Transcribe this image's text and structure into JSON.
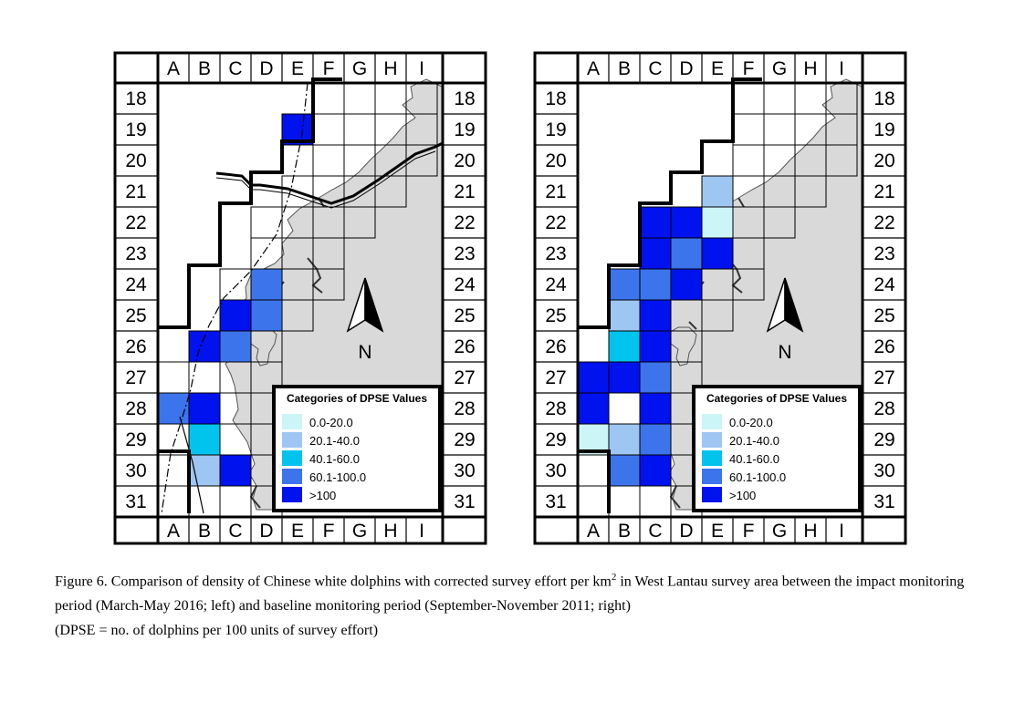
{
  "columns": [
    "A",
    "B",
    "C",
    "D",
    "E",
    "F",
    "G",
    "H",
    "I"
  ],
  "rows": [
    "18",
    "19",
    "20",
    "21",
    "22",
    "23",
    "24",
    "25",
    "26",
    "27",
    "28",
    "29",
    "30",
    "31"
  ],
  "north_label": "N",
  "legend": {
    "title": "Categories of DPSE Values",
    "categories": [
      {
        "label": "0.0-20.0",
        "color": "#ccf5f8"
      },
      {
        "label": "20.1-40.0",
        "color": "#9ec6f2"
      },
      {
        "label": "40.1-60.0",
        "color": "#00c4ee"
      },
      {
        "label": "60.1-100.0",
        "color": "#3c74ec"
      },
      {
        "label": ">100",
        "color": "#0012ee"
      }
    ]
  },
  "colors": {
    "land": "#d9d9d9",
    "grid": "#000000"
  },
  "maps": [
    {
      "name": "left-map",
      "cells": [
        {
          "col": "E",
          "row": "19",
          "category": 4
        },
        {
          "col": "D",
          "row": "24",
          "category": 3
        },
        {
          "col": "C",
          "row": "25",
          "category": 4
        },
        {
          "col": "D",
          "row": "25",
          "category": 3
        },
        {
          "col": "B",
          "row": "26",
          "category": 4
        },
        {
          "col": "C",
          "row": "26",
          "category": 3
        },
        {
          "col": "A",
          "row": "28",
          "category": 3
        },
        {
          "col": "B",
          "row": "28",
          "category": 4
        },
        {
          "col": "B",
          "row": "29",
          "category": 2
        },
        {
          "col": "B",
          "row": "30",
          "category": 1
        },
        {
          "col": "C",
          "row": "30",
          "category": 4
        }
      ]
    },
    {
      "name": "right-map",
      "cells": [
        {
          "col": "E",
          "row": "21",
          "category": 1
        },
        {
          "col": "C",
          "row": "22",
          "category": 4
        },
        {
          "col": "D",
          "row": "22",
          "category": 4
        },
        {
          "col": "E",
          "row": "22",
          "category": 0
        },
        {
          "col": "C",
          "row": "23",
          "category": 4
        },
        {
          "col": "D",
          "row": "23",
          "category": 3
        },
        {
          "col": "E",
          "row": "23",
          "category": 4
        },
        {
          "col": "B",
          "row": "24",
          "category": 3
        },
        {
          "col": "C",
          "row": "24",
          "category": 3
        },
        {
          "col": "D",
          "row": "24",
          "category": 4
        },
        {
          "col": "B",
          "row": "25",
          "category": 1
        },
        {
          "col": "C",
          "row": "25",
          "category": 4
        },
        {
          "col": "B",
          "row": "26",
          "category": 2
        },
        {
          "col": "C",
          "row": "26",
          "category": 4
        },
        {
          "col": "A",
          "row": "27",
          "category": 4
        },
        {
          "col": "B",
          "row": "27",
          "category": 4
        },
        {
          "col": "C",
          "row": "27",
          "category": 3
        },
        {
          "col": "A",
          "row": "28",
          "category": 4
        },
        {
          "col": "C",
          "row": "28",
          "category": 4
        },
        {
          "col": "A",
          "row": "29",
          "category": 0
        },
        {
          "col": "B",
          "row": "29",
          "category": 1
        },
        {
          "col": "C",
          "row": "29",
          "category": 3
        },
        {
          "col": "B",
          "row": "30",
          "category": 3
        },
        {
          "col": "C",
          "row": "30",
          "category": 4
        }
      ]
    }
  ],
  "caption": {
    "line1_pre": "Figure 6.  Comparison of density of Chinese white dolphins with corrected survey effort per km",
    "line1_sup": "2",
    "line1_post": " in West Lantau survey area between the impact monitoring period (March-May 2016; left) and baseline monitoring period (September-November 2011; right)",
    "line2": "(DPSE = no. of dolphins per 100 units of survey effort)"
  }
}
